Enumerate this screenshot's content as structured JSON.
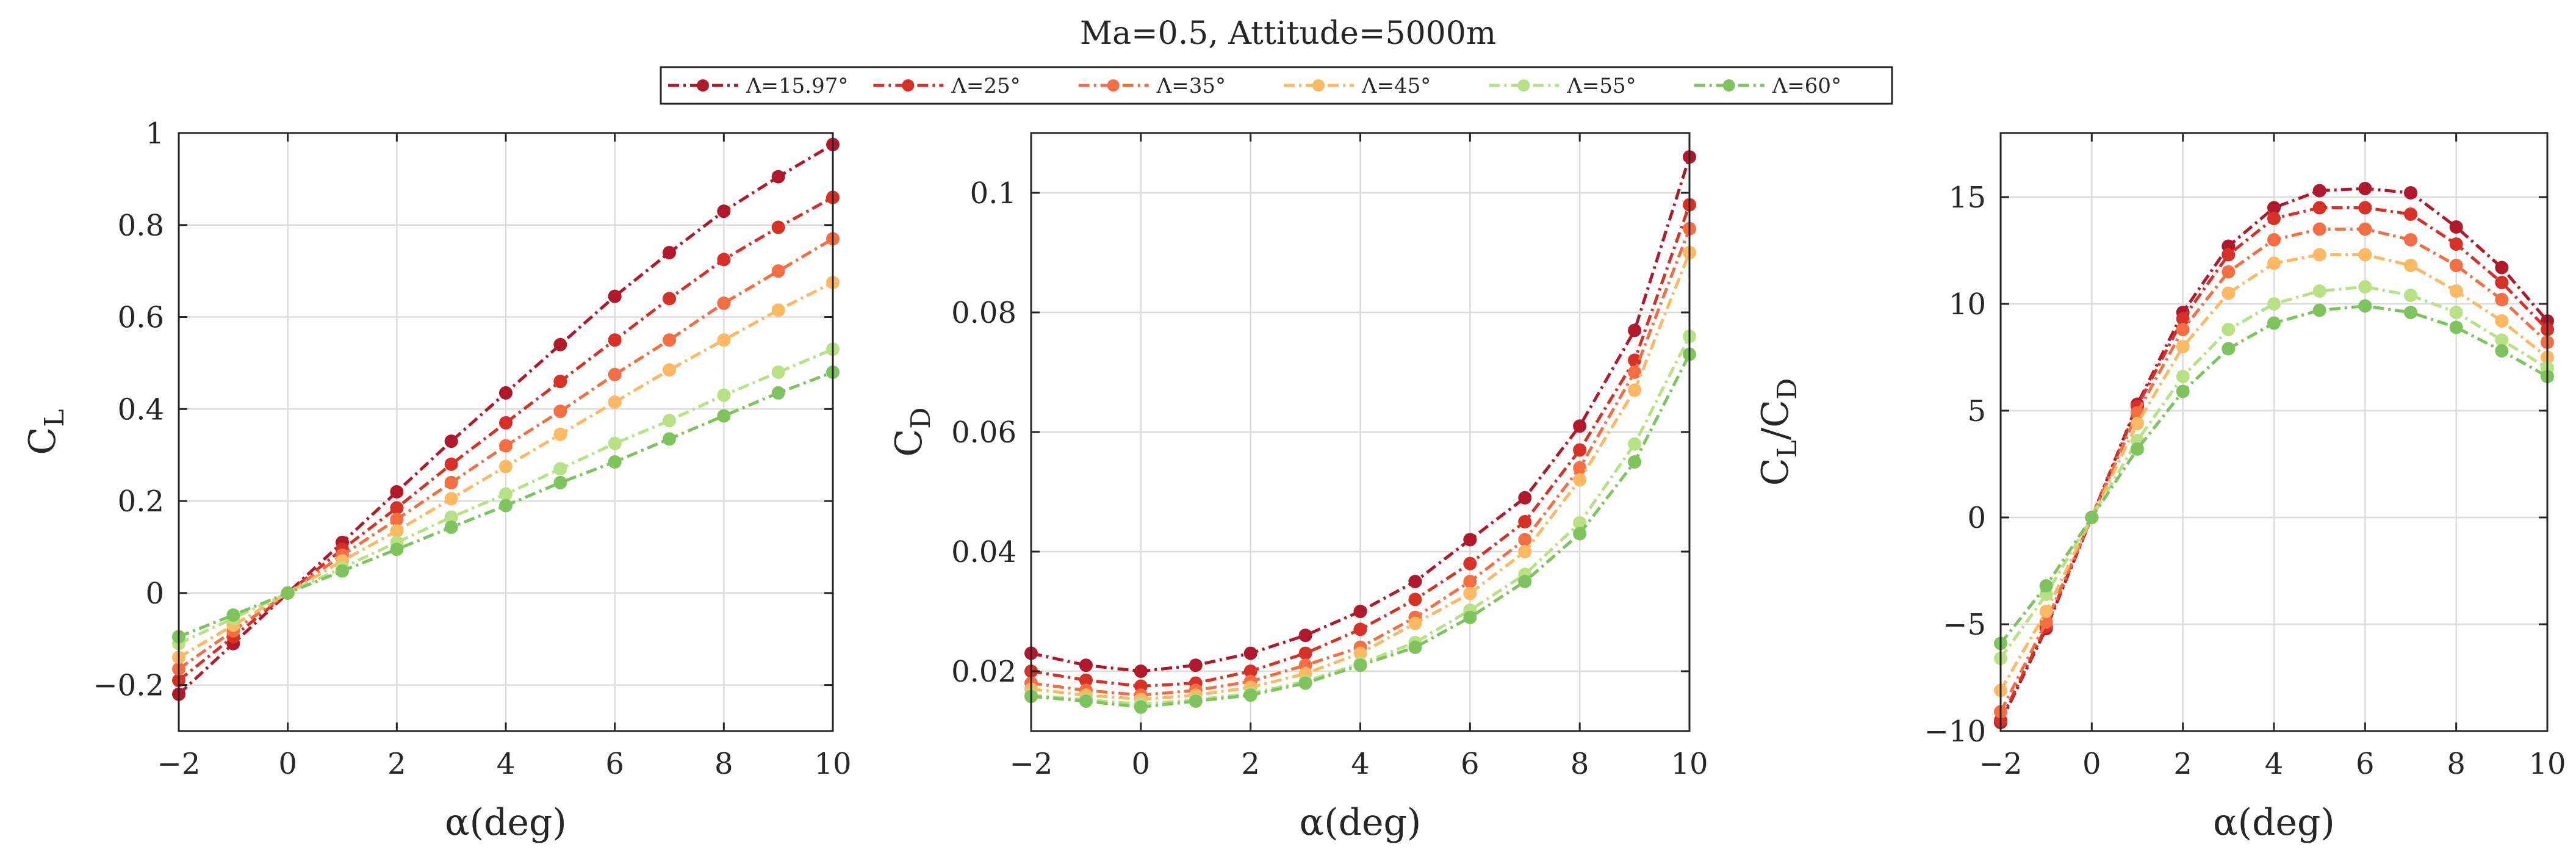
{
  "title": "Ma=0.5, Attitude=5000m",
  "legend": [
    {
      "label": "Λ=15.97°",
      "color": "#b2182b"
    },
    {
      "label": "Λ=25°",
      "color": "#d73027"
    },
    {
      "label": "Λ=35°",
      "color": "#f46d43"
    },
    {
      "label": "Λ=45°",
      "color": "#fdb863"
    },
    {
      "label": "Λ=55°",
      "color": "#b8e186"
    },
    {
      "label": "Λ=60°",
      "color": "#7fc35f"
    }
  ],
  "chart_data": [
    {
      "type": "line",
      "xlabel": "α(deg)",
      "ylabel": "C_L",
      "ylabel_main": "C",
      "ylabel_sub": "L",
      "xlim": [
        -2,
        10
      ],
      "ylim": [
        -0.3,
        1.0
      ],
      "xticks": [
        -2,
        0,
        2,
        4,
        6,
        8,
        10
      ],
      "xtick_labels": [
        "−2",
        "0",
        "2",
        "4",
        "6",
        "8",
        "10"
      ],
      "yticks": [
        -0.2,
        0,
        0.2,
        0.4,
        0.6,
        0.8,
        1.0
      ],
      "ytick_labels": [
        "−0.2",
        "0",
        "0.2",
        "0.4",
        "0.6",
        "0.8",
        "1"
      ],
      "grid": true,
      "x": [
        -2,
        -1,
        0,
        1,
        2,
        3,
        4,
        5,
        6,
        7,
        8,
        9,
        10
      ],
      "series": [
        {
          "name": "Λ=15.97°",
          "values": [
            -0.22,
            -0.11,
            0.0,
            0.11,
            0.22,
            0.33,
            0.435,
            0.54,
            0.645,
            0.74,
            0.83,
            0.905,
            0.975
          ]
        },
        {
          "name": "Λ=25°",
          "values": [
            -0.19,
            -0.095,
            0.0,
            0.095,
            0.185,
            0.28,
            0.37,
            0.46,
            0.55,
            0.64,
            0.725,
            0.795,
            0.86
          ]
        },
        {
          "name": "Λ=35°",
          "values": [
            -0.165,
            -0.082,
            0.0,
            0.082,
            0.16,
            0.24,
            0.32,
            0.395,
            0.475,
            0.55,
            0.63,
            0.7,
            0.77
          ]
        },
        {
          "name": "Λ=45°",
          "values": [
            -0.14,
            -0.07,
            0.0,
            0.07,
            0.135,
            0.205,
            0.275,
            0.345,
            0.415,
            0.485,
            0.55,
            0.615,
            0.675
          ]
        },
        {
          "name": "Λ=55°",
          "values": [
            -0.11,
            -0.055,
            0.0,
            0.055,
            0.11,
            0.165,
            0.215,
            0.27,
            0.325,
            0.375,
            0.43,
            0.48,
            0.53
          ]
        },
        {
          "name": "Λ=60°",
          "values": [
            -0.095,
            -0.048,
            0.0,
            0.048,
            0.095,
            0.143,
            0.19,
            0.24,
            0.285,
            0.335,
            0.385,
            0.435,
            0.48
          ]
        }
      ]
    },
    {
      "type": "line",
      "xlabel": "α(deg)",
      "ylabel": "C_D",
      "ylabel_main": "C",
      "ylabel_sub": "D",
      "xlim": [
        -2,
        10
      ],
      "ylim": [
        0.01,
        0.11
      ],
      "xticks": [
        -2,
        0,
        2,
        4,
        6,
        8,
        10
      ],
      "xtick_labels": [
        "−2",
        "0",
        "2",
        "4",
        "6",
        "8",
        "10"
      ],
      "yticks": [
        0.02,
        0.04,
        0.06,
        0.08,
        0.1
      ],
      "ytick_labels": [
        "0.02",
        "0.04",
        "0.06",
        "0.08",
        "0.1"
      ],
      "grid": true,
      "x": [
        -2,
        -1,
        0,
        1,
        2,
        3,
        4,
        5,
        6,
        7,
        8,
        9,
        10
      ],
      "series": [
        {
          "name": "Λ=15.97°",
          "values": [
            0.023,
            0.021,
            0.02,
            0.021,
            0.023,
            0.026,
            0.03,
            0.035,
            0.042,
            0.049,
            0.061,
            0.077,
            0.106
          ]
        },
        {
          "name": "Λ=25°",
          "values": [
            0.02,
            0.0185,
            0.0175,
            0.018,
            0.02,
            0.023,
            0.027,
            0.032,
            0.038,
            0.045,
            0.057,
            0.072,
            0.098
          ]
        },
        {
          "name": "Λ=35°",
          "values": [
            0.018,
            0.0168,
            0.016,
            0.0168,
            0.0183,
            0.021,
            0.024,
            0.029,
            0.035,
            0.042,
            0.054,
            0.07,
            0.094
          ]
        },
        {
          "name": "Λ=45°",
          "values": [
            0.017,
            0.016,
            0.0153,
            0.016,
            0.0173,
            0.0196,
            0.023,
            0.028,
            0.033,
            0.04,
            0.052,
            0.067,
            0.09
          ]
        },
        {
          "name": "Λ=55°",
          "values": [
            0.016,
            0.0152,
            0.0145,
            0.0152,
            0.0163,
            0.0183,
            0.0213,
            0.0248,
            0.0302,
            0.0362,
            0.0448,
            0.058,
            0.076
          ]
        },
        {
          "name": "Λ=60°",
          "values": [
            0.0158,
            0.015,
            0.014,
            0.015,
            0.016,
            0.018,
            0.021,
            0.024,
            0.029,
            0.035,
            0.043,
            0.055,
            0.073
          ]
        }
      ]
    },
    {
      "type": "line",
      "xlabel": "α(deg)",
      "ylabel": "C_L/C_D",
      "ylabel_main": "C",
      "ylabel_sub": "L",
      "ylabel_mid": "/C",
      "ylabel_sub2": "D",
      "xlim": [
        -2,
        10
      ],
      "ylim": [
        -10,
        18
      ],
      "xticks": [
        -2,
        0,
        2,
        4,
        6,
        8,
        10
      ],
      "xtick_labels": [
        "−2",
        "0",
        "2",
        "4",
        "6",
        "8",
        "10"
      ],
      "yticks": [
        -10,
        -5,
        0,
        5,
        10,
        15
      ],
      "ytick_labels": [
        "−10",
        "−5",
        "0",
        "5",
        "10",
        "15"
      ],
      "grid": true,
      "x": [
        -2,
        -1,
        0,
        1,
        2,
        3,
        4,
        5,
        6,
        7,
        8,
        9,
        10
      ],
      "series": [
        {
          "name": "Λ=15.97°",
          "values": [
            -9.6,
            -5.2,
            0.0,
            5.3,
            9.6,
            12.7,
            14.5,
            15.3,
            15.4,
            15.2,
            13.6,
            11.7,
            9.2
          ]
        },
        {
          "name": "Λ=25°",
          "values": [
            -9.5,
            -5.1,
            0.0,
            5.2,
            9.3,
            12.3,
            14.0,
            14.5,
            14.5,
            14.2,
            12.8,
            11.0,
            8.8
          ]
        },
        {
          "name": "Λ=35°",
          "values": [
            -9.1,
            -4.9,
            0.0,
            4.9,
            8.8,
            11.5,
            13.0,
            13.5,
            13.5,
            13.0,
            11.8,
            10.2,
            8.2
          ]
        },
        {
          "name": "Λ=45°",
          "values": [
            -8.1,
            -4.4,
            0.0,
            4.4,
            8.0,
            10.5,
            11.9,
            12.3,
            12.3,
            11.8,
            10.6,
            9.2,
            7.5
          ]
        },
        {
          "name": "Λ=55°",
          "values": [
            -6.6,
            -3.6,
            0.0,
            3.6,
            6.6,
            8.8,
            10.0,
            10.6,
            10.8,
            10.4,
            9.6,
            8.3,
            7.0
          ]
        },
        {
          "name": "Λ=60°",
          "values": [
            -5.9,
            -3.2,
            0.0,
            3.2,
            5.9,
            7.9,
            9.1,
            9.7,
            9.9,
            9.6,
            8.9,
            7.8,
            6.6
          ]
        }
      ]
    }
  ]
}
